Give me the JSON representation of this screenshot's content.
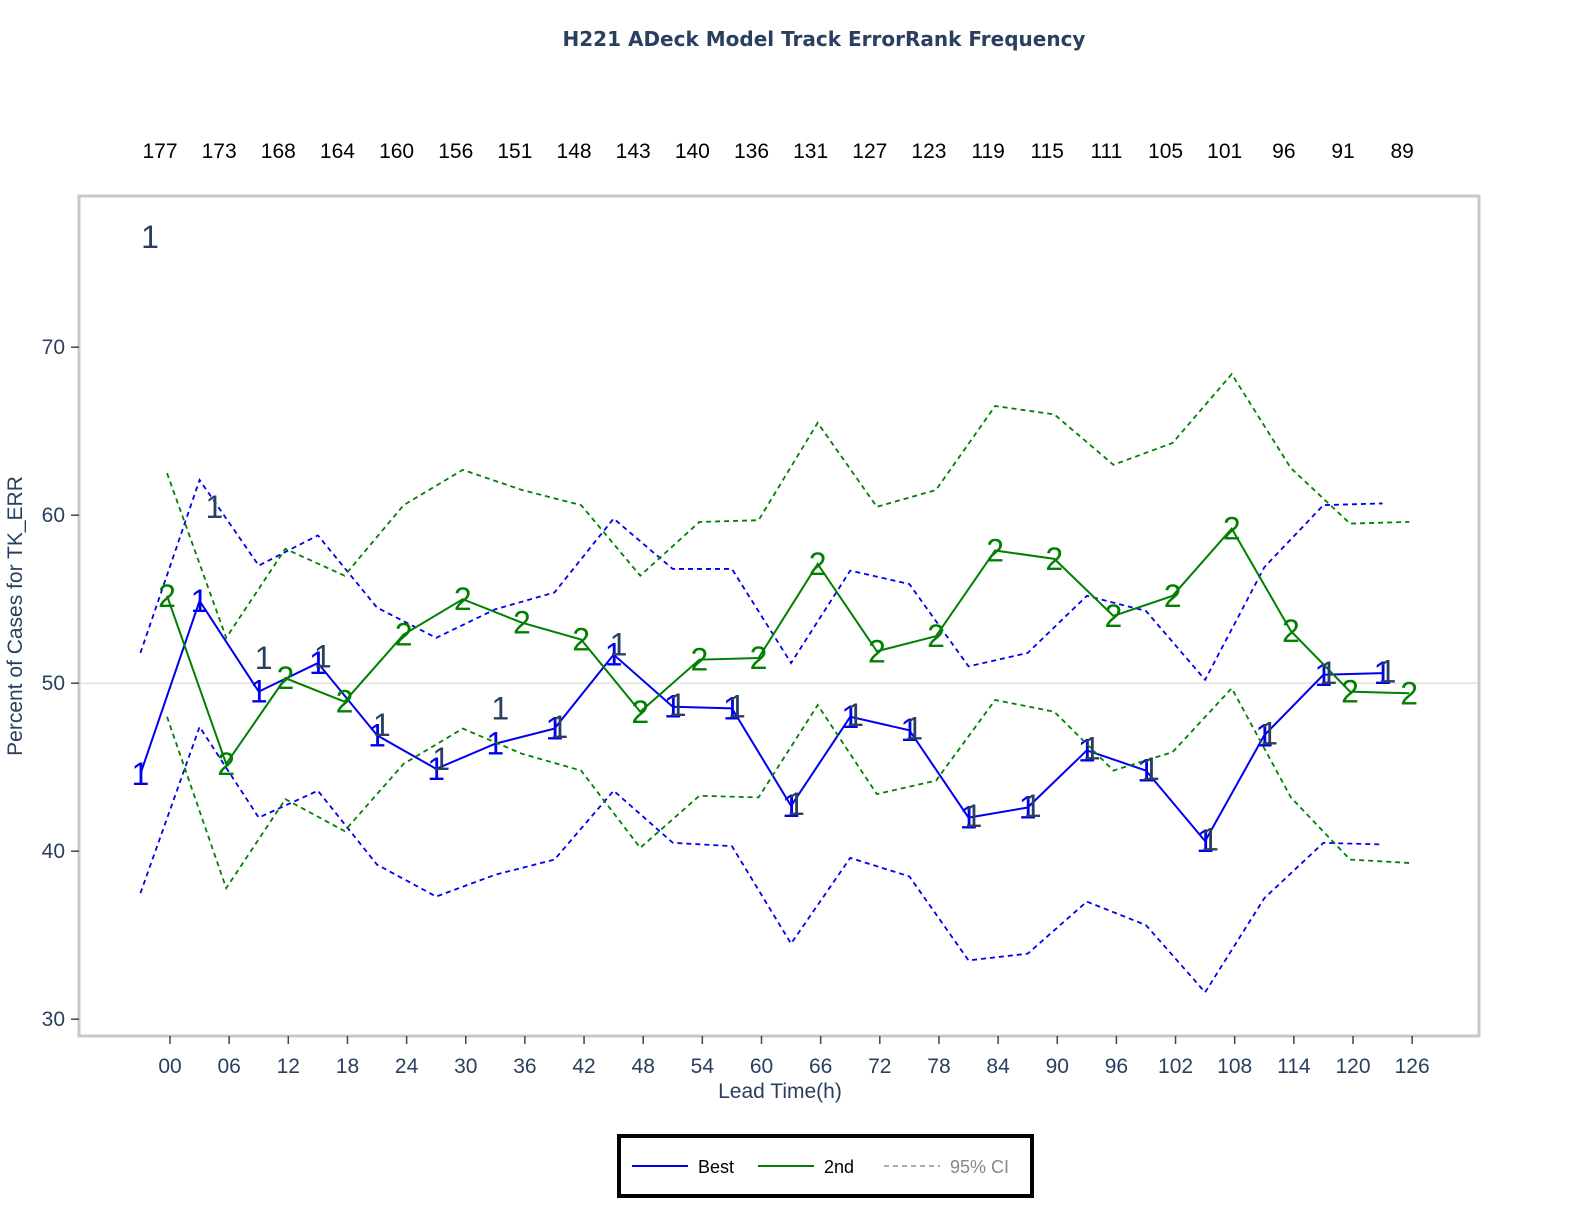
{
  "chart_data": {
    "type": "line",
    "title": "H221 ADeck Model Track ErrorRank Frequency",
    "xlabel": "Lead Time(h)",
    "ylabel": "Percent of Cases for  TK_ERR",
    "ylim": [
      29,
      79
    ],
    "yticks": [
      30,
      40,
      50,
      60,
      70
    ],
    "x": [
      "00",
      "06",
      "12",
      "18",
      "24",
      "30",
      "36",
      "42",
      "48",
      "54",
      "60",
      "66",
      "72",
      "78",
      "84",
      "90",
      "96",
      "102",
      "108",
      "114",
      "120",
      "126"
    ],
    "case_counts": [
      "177",
      "173",
      "168",
      "164",
      "160",
      "156",
      "151",
      "148",
      "143",
      "140",
      "136",
      "131",
      "127",
      "123",
      "119",
      "115",
      "111",
      "105",
      "101",
      "96",
      "91",
      "89"
    ],
    "reference_line": 50,
    "corner_rank_label": "1",
    "series": [
      {
        "name": "Best",
        "color": "#0000ee",
        "marker_text": "1",
        "offset_h": -3,
        "values": [
          44.6,
          54.9,
          49.5,
          51.2,
          46.9,
          44.9,
          46.4,
          47.3,
          51.7,
          48.6,
          48.5,
          42.7,
          48.0,
          47.2,
          42.0,
          42.6,
          46.0,
          44.8,
          40.6,
          46.9,
          50.5,
          50.6
        ],
        "ci_upper": [
          51.8,
          62.1,
          57.0,
          58.8,
          54.5,
          52.7,
          54.4,
          55.4,
          59.8,
          56.8,
          56.8,
          51.2,
          56.7,
          55.9,
          51.0,
          51.8,
          55.2,
          54.3,
          50.2,
          56.9,
          60.6,
          60.7
        ],
        "ci_lower": [
          37.5,
          47.4,
          42.0,
          43.6,
          39.2,
          37.3,
          38.6,
          39.5,
          43.6,
          40.5,
          40.3,
          34.5,
          39.6,
          38.5,
          33.5,
          33.9,
          37.0,
          35.6,
          31.6,
          37.2,
          40.5,
          40.4
        ]
      },
      {
        "name": "2nd",
        "color": "#008000",
        "marker_text": "2",
        "offset_h": -0.3,
        "values": [
          55.2,
          45.2,
          50.3,
          48.9,
          52.9,
          55.0,
          53.6,
          52.6,
          48.3,
          51.4,
          51.5,
          57.1,
          51.9,
          52.8,
          57.9,
          57.4,
          54.0,
          55.2,
          59.2,
          53.1,
          49.5,
          49.4
        ],
        "ci_upper": [
          62.5,
          52.7,
          58.0,
          56.4,
          60.6,
          62.7,
          61.5,
          60.6,
          56.4,
          59.6,
          59.7,
          65.5,
          60.5,
          61.5,
          66.5,
          66.0,
          63.0,
          64.3,
          68.4,
          62.8,
          59.5,
          59.6
        ],
        "ci_lower": [
          48.0,
          37.8,
          43.1,
          41.2,
          45.2,
          47.3,
          45.8,
          44.8,
          40.2,
          43.3,
          43.2,
          48.7,
          43.4,
          44.2,
          49.0,
          48.3,
          44.8,
          45.9,
          49.7,
          43.2,
          39.5,
          39.3
        ]
      }
    ],
    "rank_labels_dark": [
      {
        "x": 4.5,
        "y": 60.5
      },
      {
        "x": 9.5,
        "y": 51.5
      },
      {
        "x": 15.5,
        "y": 51.6
      },
      {
        "x": 21.5,
        "y": 47.5
      },
      {
        "x": 27.5,
        "y": 45.5
      },
      {
        "x": 33.5,
        "y": 48.5
      },
      {
        "x": 39.5,
        "y": 47.4
      },
      {
        "x": 45.5,
        "y": 52.3
      },
      {
        "x": 51.5,
        "y": 48.7
      },
      {
        "x": 57.5,
        "y": 48.6
      },
      {
        "x": 63.5,
        "y": 42.8
      },
      {
        "x": 69.5,
        "y": 48.1
      },
      {
        "x": 75.5,
        "y": 47.3
      },
      {
        "x": 81.5,
        "y": 42.1
      },
      {
        "x": 87.5,
        "y": 42.7
      },
      {
        "x": 93.5,
        "y": 46.1
      },
      {
        "x": 99.5,
        "y": 44.9
      },
      {
        "x": 105.5,
        "y": 40.7
      },
      {
        "x": 111.5,
        "y": 47.0
      },
      {
        "x": 117.5,
        "y": 50.6
      },
      {
        "x": 123.5,
        "y": 50.7
      }
    ],
    "legend": {
      "placement": "bottom-center",
      "items": [
        {
          "label": "Best",
          "color": "#0000ee",
          "style": "solid"
        },
        {
          "label": "2nd",
          "color": "#008000",
          "style": "solid"
        },
        {
          "label": "95% CI",
          "color": "#aaaaaa",
          "style": "dashed"
        }
      ]
    },
    "grid": false
  }
}
